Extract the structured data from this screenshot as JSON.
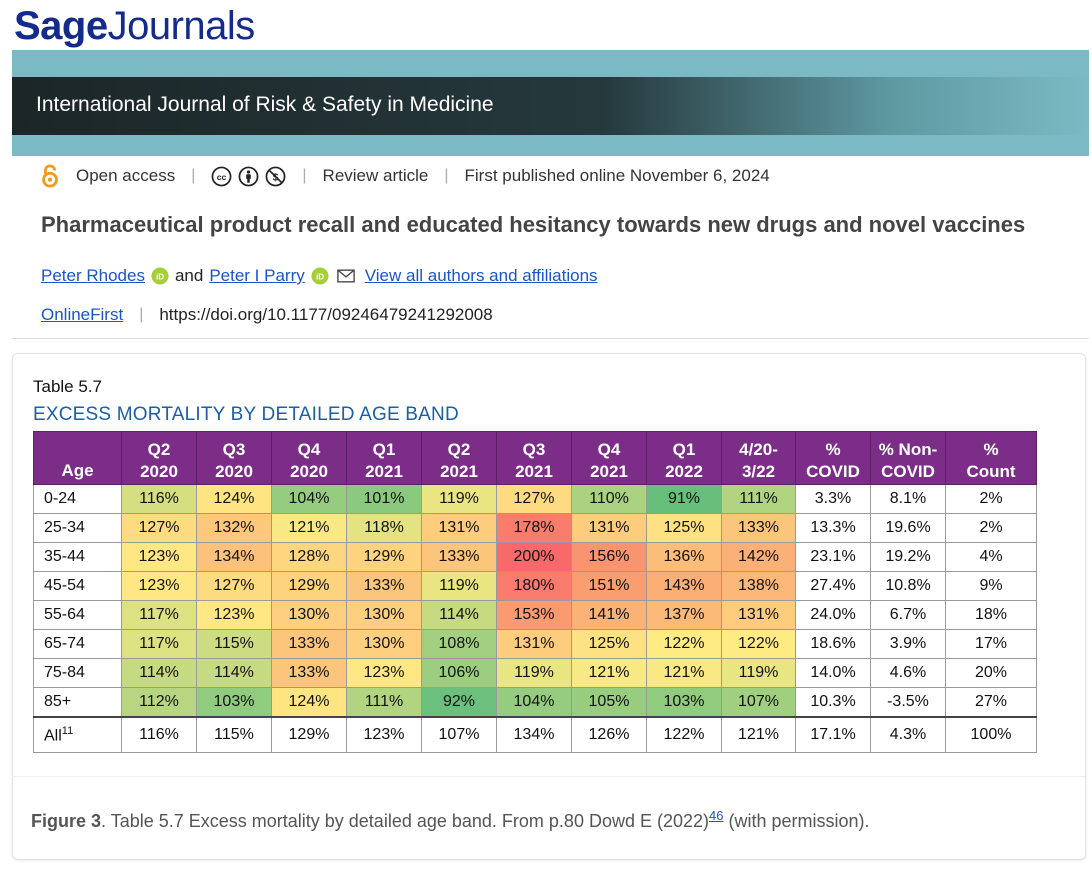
{
  "logo": {
    "sage": "Sage",
    "journals": "Journals"
  },
  "journal": {
    "title": "International Journal of Risk & Safety in Medicine"
  },
  "meta": {
    "access": "Open access",
    "separator": "|",
    "article_type": "Review article",
    "published": "First published online November 6, 2024"
  },
  "article": {
    "title": "Pharmaceutical product recall and educated hesitancy towards new drugs and novel vaccines"
  },
  "authors": {
    "author1": "Peter Rhodes",
    "and": "and",
    "author2": "Peter I Parry",
    "view_all": "View all authors and affiliations"
  },
  "doi_row": {
    "online_first": "OnlineFirst",
    "doi": "https://doi.org/10.1177/09246479241292008"
  },
  "table": {
    "label": "Table 5.7",
    "heading": "EXCESS MORTALITY BY DETAILED AGE BAND",
    "headers": [
      [
        "",
        "Age"
      ],
      [
        "Q2",
        "2020"
      ],
      [
        "Q3",
        "2020"
      ],
      [
        "Q4",
        "2020"
      ],
      [
        "Q1",
        "2021"
      ],
      [
        "Q2",
        "2021"
      ],
      [
        "Q3",
        "2021"
      ],
      [
        "Q4",
        "2021"
      ],
      [
        "Q1",
        "2022"
      ],
      [
        "4/20-",
        "3/22"
      ],
      [
        "%",
        "COVID"
      ],
      [
        "% Non-",
        "COVID"
      ],
      [
        "%",
        "Count"
      ]
    ],
    "rows": [
      {
        "age": "0-24",
        "values": [
          "116%",
          "124%",
          "104%",
          "101%",
          "119%",
          "127%",
          "110%",
          "91%",
          "111%"
        ],
        "covid": "3.3%",
        "noncovid": "8.1%",
        "count": "2%"
      },
      {
        "age": "25-34",
        "values": [
          "127%",
          "132%",
          "121%",
          "118%",
          "131%",
          "178%",
          "131%",
          "125%",
          "133%"
        ],
        "covid": "13.3%",
        "noncovid": "19.6%",
        "count": "2%"
      },
      {
        "age": "35-44",
        "values": [
          "123%",
          "134%",
          "128%",
          "129%",
          "133%",
          "200%",
          "156%",
          "136%",
          "142%"
        ],
        "covid": "23.1%",
        "noncovid": "19.2%",
        "count": "4%"
      },
      {
        "age": "45-54",
        "values": [
          "123%",
          "127%",
          "129%",
          "133%",
          "119%",
          "180%",
          "151%",
          "143%",
          "138%"
        ],
        "covid": "27.4%",
        "noncovid": "10.8%",
        "count": "9%"
      },
      {
        "age": "55-64",
        "values": [
          "117%",
          "123%",
          "130%",
          "130%",
          "114%",
          "153%",
          "141%",
          "137%",
          "131%"
        ],
        "covid": "24.0%",
        "noncovid": "6.7%",
        "count": "18%"
      },
      {
        "age": "65-74",
        "values": [
          "117%",
          "115%",
          "133%",
          "130%",
          "108%",
          "131%",
          "125%",
          "122%",
          "122%"
        ],
        "covid": "18.6%",
        "noncovid": "3.9%",
        "count": "17%"
      },
      {
        "age": "75-84",
        "values": [
          "114%",
          "114%",
          "133%",
          "123%",
          "106%",
          "119%",
          "121%",
          "121%",
          "119%"
        ],
        "covid": "14.0%",
        "noncovid": "4.6%",
        "count": "20%"
      },
      {
        "age": "85+",
        "values": [
          "112%",
          "103%",
          "124%",
          "111%",
          "92%",
          "104%",
          "105%",
          "103%",
          "107%"
        ],
        "covid": "10.3%",
        "noncovid": "-3.5%",
        "count": "27%"
      }
    ],
    "all_row": {
      "age": "All",
      "age_sup": "11",
      "values": [
        "116%",
        "115%",
        "129%",
        "123%",
        "107%",
        "134%",
        "126%",
        "122%",
        "121%"
      ],
      "covid": "17.1%",
      "noncovid": "4.3%",
      "count": "100%"
    }
  },
  "caption": {
    "label": "Figure 3",
    "text": ". Table 5.7 Excess mortality by detailed age band. From p.80 Dowd E (2022)",
    "ref": "46",
    "suffix": " (with permission)."
  },
  "colors": {
    "brand_blue": "#142a8c",
    "link": "#1a55c8",
    "header_purple": "#7b2d87",
    "banner_teal": "#7bbac4",
    "oa_orange": "#f39a1e",
    "orcid_green": "#a6ce39"
  }
}
